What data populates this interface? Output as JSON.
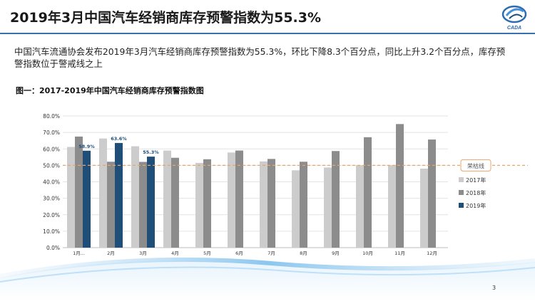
{
  "slide": {
    "title": "2019年3月中国汽车经销商库存预警指数为55.3%",
    "description": "中国汽车流通协会发布2019年3月汽车经销商库存预警指数为55.3%，环比下降8.3个百分点，同比上升3.2个百分点，库存预警指数位于警戒线之上",
    "figure_title": "图一：2017-2019年中国汽车经销商库存预警指数图",
    "page_number": "3"
  },
  "logo": {
    "text": "CADA"
  },
  "colors": {
    "title_rule": "#3a6fb0",
    "series_2017": "#cccccc",
    "series_2018": "#8c8c8c",
    "series_2019": "#1f4e79",
    "threshold": "#e8a66b",
    "label_2019": "#1f4e79"
  },
  "chart_data": {
    "type": "bar",
    "categories": [
      "1月...",
      "2月",
      "3月",
      "4月",
      "5月",
      "6月",
      "7月",
      "8月",
      "9月",
      "10月",
      "11月",
      "12月"
    ],
    "series": [
      {
        "name": "2017年",
        "values": [
          61.2,
          66.3,
          61.6,
          59.0,
          51.5,
          57.8,
          52.4,
          47.0,
          48.7,
          50.0,
          50.0,
          48.0
        ]
      },
      {
        "name": "2018年",
        "values": [
          67.5,
          52.2,
          52.1,
          54.6,
          53.7,
          59.0,
          53.9,
          52.2,
          58.7,
          67.1,
          75.1,
          65.7
        ]
      },
      {
        "name": "2019年",
        "values": [
          58.9,
          63.6,
          55.3,
          null,
          null,
          null,
          null,
          null,
          null,
          null,
          null,
          null
        ]
      }
    ],
    "data_labels_2019": [
      "58.9%",
      "63.6%",
      "55.3%"
    ],
    "threshold": {
      "value": 50,
      "label": "荣枯线"
    },
    "ylim": [
      0,
      80
    ],
    "yticks": [
      "0.0%",
      "10.0%",
      "20.0%",
      "30.0%",
      "40.0%",
      "50.0%",
      "60.0%",
      "70.0%",
      "80.0%"
    ],
    "grid": true,
    "legend_position": "right"
  }
}
